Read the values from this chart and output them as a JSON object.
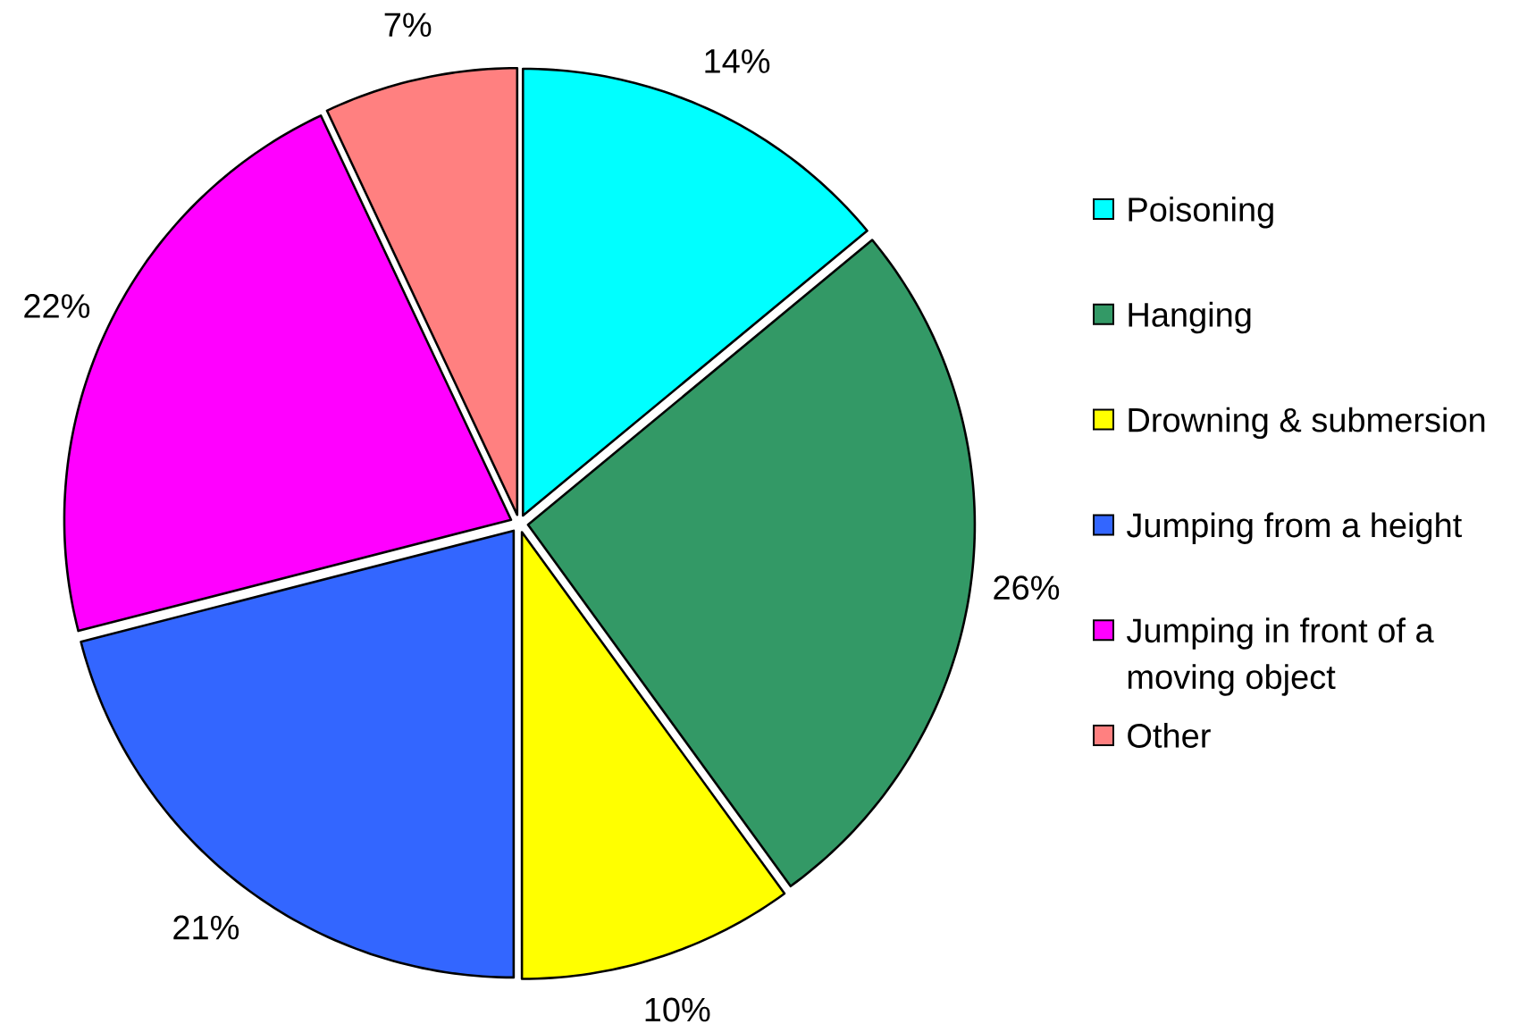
{
  "chart_data": {
    "type": "pie",
    "categories": [
      "Poisoning",
      "Hanging",
      "Drowning & submersion",
      "Jumping from a height",
      "Jumping in front of a moving object",
      "Other"
    ],
    "values": [
      14,
      26,
      10,
      21,
      22,
      7
    ],
    "colors": [
      "#00ffff",
      "#339966",
      "#ffff00",
      "#3366ff",
      "#ff00ff",
      "#ff8080"
    ],
    "value_labels": [
      "14%",
      "26%",
      "10%",
      "21%",
      "22%",
      "7%"
    ],
    "legend": "right"
  }
}
